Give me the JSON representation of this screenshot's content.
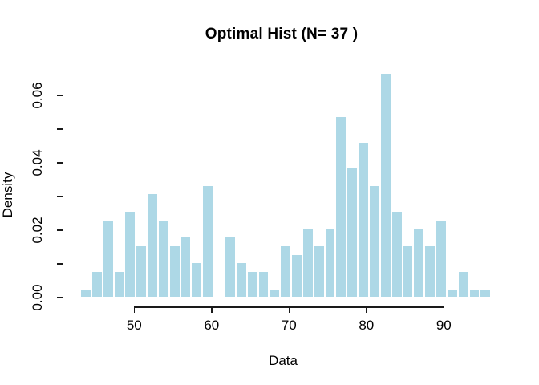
{
  "chart_data": {
    "type": "bar",
    "subtype": "histogram",
    "title": "Optimal Hist (N= 37 )",
    "xlabel": "Data",
    "ylabel": "Density",
    "x_ticks": {
      "values": [
        50,
        60,
        70,
        80,
        90
      ],
      "labels": [
        "50",
        "60",
        "70",
        "80",
        "90"
      ]
    },
    "y_ticks": {
      "values": [
        0,
        0.01,
        0.02,
        0.03,
        0.04,
        0.05,
        0.06
      ],
      "labels": [
        "0.00",
        "",
        "0.02",
        "",
        "0.04",
        "",
        "0.06"
      ]
    },
    "xlim": [
      43.0,
      96.1
    ],
    "ylim": [
      0,
      0.0669
    ],
    "grid": false,
    "bins": {
      "start": 43.03,
      "width": 1.4348,
      "count": 37
    },
    "densities": [
      0.0026,
      0.0077,
      0.0231,
      0.0077,
      0.0257,
      0.0154,
      0.0308,
      0.0231,
      0.0154,
      0.018,
      0.0103,
      0.0334,
      0,
      0.018,
      0.0103,
      0.0077,
      0.0077,
      0.0026,
      0.0154,
      0.0128,
      0.0205,
      0.0154,
      0.0205,
      0.0539,
      0.0385,
      0.0462,
      0.0334,
      0.0667,
      0.0257,
      0.0154,
      0.0205,
      0.0154,
      0.0231,
      0.0026,
      0.0077,
      0.0026,
      0.0026
    ],
    "colors": {
      "bar_fill": "#ADD8E6",
      "bar_border": "#FFFFFF",
      "axis": "#1A1A1A",
      "text": "#000000",
      "background": "#FFFFFF"
    }
  }
}
